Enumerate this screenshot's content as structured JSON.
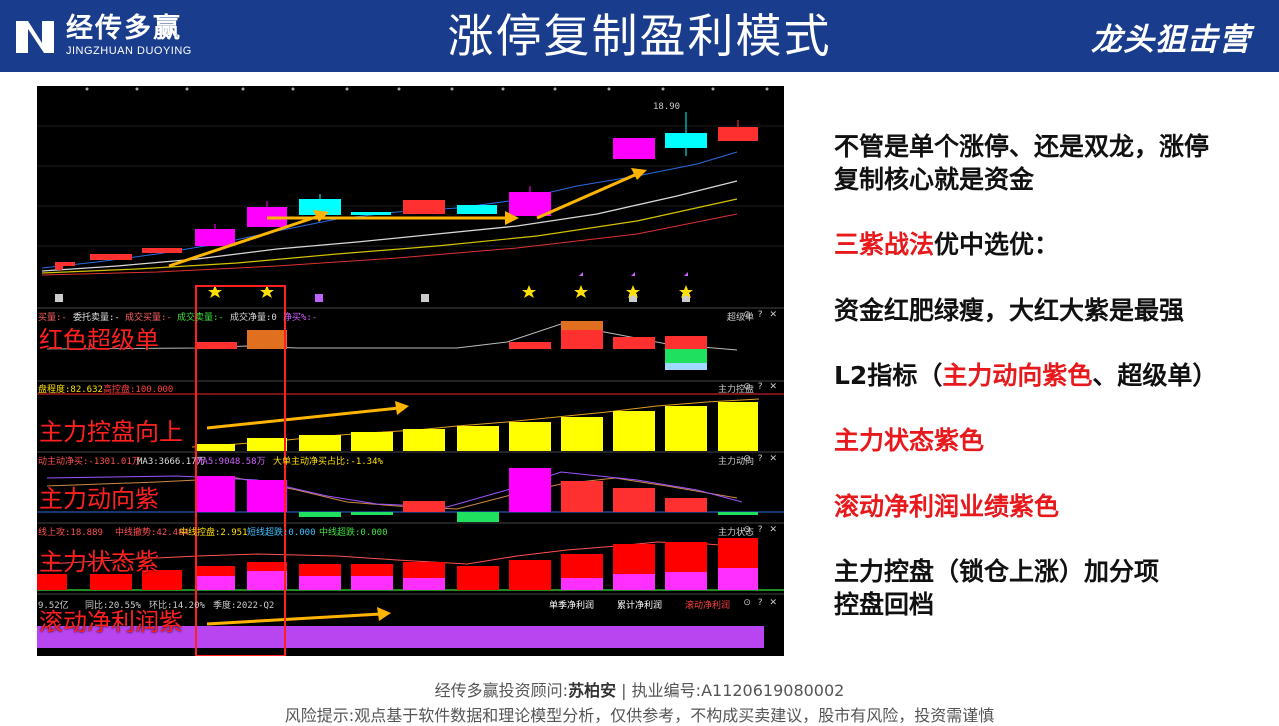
{
  "header": {
    "logo_cn": "经传多赢",
    "logo_en": "JINGZHUAN DUOYING",
    "title": "涨停复制盈利模式",
    "brand": "龙头狙击营"
  },
  "chart": {
    "price_label_high": "18.90",
    "panel_superorder": {
      "name": "超级单",
      "big_label": "红色超级单",
      "indicators": [
        "买量:-",
        "委托卖量:-",
        "成交买量:-",
        "成交卖量:-",
        "成交净量:0",
        "净买%:-"
      ]
    },
    "panel_control": {
      "name": "主力控盘",
      "big_label": "主力控盘向上",
      "indicators": [
        "盘程度:82.632",
        "高控盘:100.000"
      ]
    },
    "panel_direction": {
      "name": "主力动向",
      "big_label": "主力动向紫",
      "indicators": [
        "动主动净买:-1301.01万",
        "MA3:3666.17万",
        "MA5:9048.58万",
        "大单主动净买占比:-1.34%"
      ]
    },
    "panel_state": {
      "name": "主力状态",
      "big_label": "主力状态紫",
      "indicators": [
        "线上攻:18.889",
        "中线撤势:42.484",
        "中线控盘:2.951",
        "短线超跌:0.000",
        "中线超跌:0.000"
      ]
    },
    "panel_profit": {
      "big_label": "滚动净利润紫",
      "indicators": [
        "9.52亿",
        "同比:20.55%",
        "环比:14.20%",
        "季度:2022-Q2"
      ],
      "tabs": [
        "单季净利润",
        "累计净利润",
        "滚动净利润"
      ]
    },
    "controls": "⊙ ? ✕"
  },
  "notes": {
    "line1a": "不管是单个涨停、还是双龙，涨停",
    "line1b": "复制核心就是资金",
    "line2_red": "三紫战法",
    "line2_black": "优中选优：",
    "line3": "资金红肥绿瘦，大红大紫是最强",
    "line4_a": "L2指标（",
    "line4_red": "主力动向紫色",
    "line4_b": "、超级单）",
    "line5": "主力状态紫色",
    "line6": "滚动净利润业绩紫色",
    "line7a": "主力控盘（锁仓上涨）加分项",
    "line7b": "控盘回档"
  },
  "footer": {
    "advisor_prefix": "经传多赢投资顾问:",
    "advisor_name": "苏柏安",
    "advisor_sep": "|",
    "license_prefix": "执业编号:",
    "license_no": "A1120619080002",
    "risk": "风险提示:观点基于软件数据和理论模型分析，仅供参考，不构成买卖建议，股市有风险，投资需谨慎"
  },
  "colors": {
    "header_bg": "#1a3c8c",
    "accent_red": "#e8191c",
    "magenta": "#ff00ff",
    "cyan": "#00ffff",
    "yellow": "#ffff00",
    "arrow": "#ffb400",
    "purple_bar": "#b845f0"
  }
}
